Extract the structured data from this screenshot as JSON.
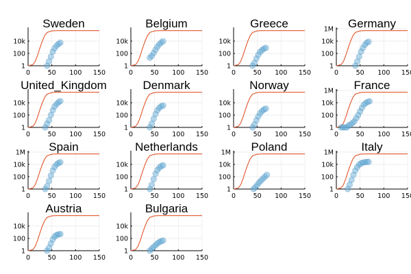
{
  "chart_data": [
    {
      "type": "scatter",
      "title": "Sweden",
      "xlim": [
        0,
        150
      ],
      "y_scale": "log",
      "ylim": [
        1,
        1000000
      ],
      "x_ticks": [
        "0",
        "50",
        "100",
        "150"
      ],
      "y_ticks": [
        "1",
        "100",
        "10k"
      ],
      "series": [
        {
          "type": "line",
          "x": [
            0,
            10,
            15,
            20,
            25,
            30,
            35,
            40,
            50,
            60,
            80,
            100,
            150
          ],
          "y": [
            1,
            1.5,
            5,
            50,
            800,
            10000,
            80000,
            250000,
            450000,
            500000,
            500000,
            500000,
            500000
          ]
        },
        {
          "type": "scatter",
          "x": [
            40,
            44,
            48,
            52,
            56,
            60,
            64,
            68
          ],
          "y": [
            1,
            5,
            30,
            200,
            700,
            1800,
            3500,
            5500
          ]
        }
      ]
    },
    {
      "type": "scatter",
      "title": "Belgium",
      "xlim": [
        0,
        150
      ],
      "y_scale": "log",
      "ylim": [
        1,
        1000000
      ],
      "x_ticks": [
        "0",
        "50",
        "100",
        "150"
      ],
      "y_ticks": [
        "1",
        "100",
        "10k"
      ],
      "series": [
        {
          "type": "line",
          "x": [
            0,
            10,
            15,
            20,
            25,
            30,
            35,
            40,
            50,
            60,
            80,
            100,
            150
          ],
          "y": [
            1,
            1.5,
            5,
            50,
            800,
            10000,
            80000,
            250000,
            450000,
            500000,
            500000,
            500000,
            500000
          ]
        },
        {
          "type": "scatter",
          "x": [
            40,
            44,
            48,
            52,
            56,
            60,
            64,
            68
          ],
          "y": [
            20,
            40,
            120,
            400,
            1200,
            3000,
            6000,
            9500
          ]
        }
      ]
    },
    {
      "type": "scatter",
      "title": "Greece",
      "xlim": [
        0,
        150
      ],
      "y_scale": "log",
      "ylim": [
        1,
        1000000
      ],
      "x_ticks": [
        "0",
        "50",
        "100",
        "150"
      ],
      "y_ticks": [
        "1",
        "100",
        "10k"
      ],
      "series": [
        {
          "type": "line",
          "x": [
            0,
            10,
            15,
            20,
            25,
            30,
            35,
            40,
            50,
            60,
            80,
            100,
            150
          ],
          "y": [
            1,
            1.5,
            5,
            50,
            800,
            10000,
            80000,
            250000,
            450000,
            500000,
            500000,
            500000,
            500000
          ]
        },
        {
          "type": "scatter",
          "x": [
            40,
            44,
            48,
            52,
            56,
            60,
            64,
            68
          ],
          "y": [
            1,
            3,
            15,
            60,
            180,
            350,
            600,
            800
          ]
        }
      ]
    },
    {
      "type": "scatter",
      "title": "Germany",
      "xlim": [
        0,
        150
      ],
      "y_scale": "log",
      "ylim": [
        1,
        1000000
      ],
      "x_ticks": [
        "0",
        "50",
        "100",
        "150"
      ],
      "y_ticks": [
        "1",
        "100",
        "10k",
        "1M"
      ],
      "series": [
        {
          "type": "line",
          "x": [
            0,
            10,
            15,
            20,
            25,
            30,
            35,
            40,
            50,
            60,
            80,
            100,
            150
          ],
          "y": [
            1,
            1.5,
            5,
            50,
            800,
            10000,
            80000,
            250000,
            450000,
            500000,
            500000,
            500000,
            500000
          ]
        },
        {
          "type": "scatter",
          "x": [
            40,
            44,
            48,
            52,
            56,
            60,
            64,
            68
          ],
          "y": [
            1,
            5,
            30,
            200,
            800,
            2500,
            5500,
            8000
          ]
        }
      ]
    },
    {
      "type": "scatter",
      "title": "United_Kingdom",
      "xlim": [
        0,
        150
      ],
      "y_scale": "log",
      "ylim": [
        1,
        1000000
      ],
      "x_ticks": [
        "0",
        "50",
        "100",
        "150"
      ],
      "y_ticks": [
        "1",
        "100",
        "10k"
      ],
      "series": [
        {
          "type": "line",
          "x": [
            0,
            10,
            15,
            20,
            25,
            30,
            35,
            40,
            50,
            60,
            80,
            100,
            150
          ],
          "y": [
            1,
            1.5,
            5,
            50,
            800,
            10000,
            80000,
            250000,
            450000,
            500000,
            500000,
            500000,
            500000
          ]
        },
        {
          "type": "scatter",
          "x": [
            36,
            40,
            44,
            48,
            52,
            56,
            60,
            64,
            68
          ],
          "y": [
            1,
            4,
            15,
            100,
            600,
            2500,
            6000,
            12000,
            18000
          ]
        }
      ]
    },
    {
      "type": "scatter",
      "title": "Denmark",
      "xlim": [
        0,
        150
      ],
      "y_scale": "log",
      "ylim": [
        1,
        1000000
      ],
      "x_ticks": [
        "0",
        "50",
        "100",
        "150"
      ],
      "y_ticks": [
        "1",
        "100",
        "10k"
      ],
      "series": [
        {
          "type": "line",
          "x": [
            0,
            10,
            15,
            20,
            25,
            30,
            35,
            40,
            50,
            60,
            80,
            100,
            150
          ],
          "y": [
            1,
            1.5,
            5,
            50,
            800,
            10000,
            80000,
            250000,
            450000,
            500000,
            500000,
            500000,
            500000
          ]
        },
        {
          "type": "scatter",
          "x": [
            40,
            44,
            48,
            52,
            56,
            60,
            64,
            68
          ],
          "y": [
            1,
            4,
            25,
            150,
            600,
            1500,
            2800,
            3500
          ]
        }
      ]
    },
    {
      "type": "scatter",
      "title": "Norway",
      "xlim": [
        0,
        150
      ],
      "y_scale": "log",
      "ylim": [
        1,
        1000000
      ],
      "x_ticks": [
        "0",
        "50",
        "100",
        "150"
      ],
      "y_ticks": [
        "1",
        "100",
        "10k"
      ],
      "series": [
        {
          "type": "line",
          "x": [
            0,
            10,
            15,
            20,
            25,
            30,
            35,
            40,
            50,
            60,
            80,
            100,
            150
          ],
          "y": [
            1,
            1.5,
            5,
            50,
            800,
            10000,
            80000,
            250000,
            450000,
            500000,
            500000,
            500000,
            500000
          ]
        },
        {
          "type": "scatter",
          "x": [
            40,
            44,
            48,
            52,
            56,
            60,
            64,
            68
          ],
          "y": [
            1,
            3,
            15,
            60,
            200,
            450,
            800,
            1100
          ]
        }
      ]
    },
    {
      "type": "scatter",
      "title": "France",
      "xlim": [
        0,
        150
      ],
      "y_scale": "log",
      "ylim": [
        1,
        1000000
      ],
      "x_ticks": [
        "0",
        "50",
        "100",
        "150"
      ],
      "y_ticks": [
        "1",
        "100",
        "10k",
        "1M"
      ],
      "series": [
        {
          "type": "line",
          "x": [
            0,
            10,
            15,
            20,
            25,
            30,
            35,
            40,
            50,
            60,
            80,
            100,
            150
          ],
          "y": [
            1,
            1.5,
            5,
            50,
            800,
            10000,
            80000,
            250000,
            450000,
            500000,
            500000,
            500000,
            500000
          ]
        },
        {
          "type": "scatter",
          "x": [
            10,
            14,
            18,
            22,
            26,
            30,
            34,
            38,
            42,
            46,
            50,
            54,
            58,
            62,
            66,
            70
          ],
          "y": [
            1,
            1,
            1,
            1,
            2,
            3,
            5,
            10,
            30,
            100,
            400,
            1500,
            5000,
            9000,
            14000,
            17000
          ]
        }
      ]
    },
    {
      "type": "scatter",
      "title": "Spain",
      "xlim": [
        0,
        150
      ],
      "y_scale": "log",
      "ylim": [
        1,
        1000000
      ],
      "x_ticks": [
        "0",
        "50",
        "100",
        "150"
      ],
      "y_ticks": [
        "1",
        "100",
        "10k",
        "1M"
      ],
      "series": [
        {
          "type": "line",
          "x": [
            0,
            10,
            15,
            20,
            25,
            30,
            35,
            40,
            50,
            60,
            80,
            100,
            150
          ],
          "y": [
            1,
            1.5,
            5,
            50,
            800,
            10000,
            80000,
            250000,
            450000,
            500000,
            500000,
            500000,
            500000
          ]
        },
        {
          "type": "scatter",
          "x": [
            36,
            40,
            44,
            48,
            52,
            56,
            60,
            64,
            68
          ],
          "y": [
            1,
            3,
            20,
            150,
            1000,
            4000,
            10000,
            17000,
            22000
          ]
        }
      ]
    },
    {
      "type": "scatter",
      "title": "Netherlands",
      "xlim": [
        0,
        150
      ],
      "y_scale": "log",
      "ylim": [
        1,
        1000000
      ],
      "x_ticks": [
        "0",
        "50",
        "100",
        "150"
      ],
      "y_ticks": [
        "1",
        "100",
        "10k"
      ],
      "series": [
        {
          "type": "line",
          "x": [
            0,
            10,
            15,
            20,
            25,
            30,
            35,
            40,
            50,
            60,
            80,
            100,
            150
          ],
          "y": [
            1,
            1.5,
            5,
            50,
            800,
            10000,
            80000,
            250000,
            450000,
            500000,
            500000,
            500000,
            500000
          ]
        },
        {
          "type": "scatter",
          "x": [
            40,
            44,
            48,
            52,
            56,
            60,
            64,
            68
          ],
          "y": [
            1,
            5,
            40,
            300,
            1200,
            3000,
            5500,
            7000
          ]
        }
      ]
    },
    {
      "type": "scatter",
      "title": "Poland",
      "xlim": [
        0,
        150
      ],
      "y_scale": "log",
      "ylim": [
        1,
        1000000
      ],
      "x_ticks": [
        "0",
        "50",
        "100",
        "150"
      ],
      "y_ticks": [
        "1",
        "100",
        "10k",
        "1M"
      ],
      "series": [
        {
          "type": "line",
          "x": [
            0,
            10,
            15,
            20,
            25,
            30,
            35,
            40,
            50,
            60,
            80,
            100,
            150
          ],
          "y": [
            1,
            1.5,
            5,
            50,
            800,
            10000,
            80000,
            250000,
            450000,
            500000,
            500000,
            500000,
            500000
          ]
        },
        {
          "type": "scatter",
          "x": [
            42,
            46,
            50,
            54,
            58,
            62,
            66,
            70
          ],
          "y": [
            1,
            2,
            5,
            12,
            25,
            50,
            100,
            200
          ]
        }
      ]
    },
    {
      "type": "scatter",
      "title": "Italy",
      "xlim": [
        0,
        150
      ],
      "y_scale": "log",
      "ylim": [
        1,
        1000000
      ],
      "x_ticks": [
        "0",
        "50",
        "100",
        "150"
      ],
      "y_ticks": [
        "1",
        "100",
        "10k",
        "1M"
      ],
      "series": [
        {
          "type": "line",
          "x": [
            0,
            10,
            15,
            20,
            25,
            30,
            35,
            40,
            50,
            60,
            80,
            100,
            150
          ],
          "y": [
            1,
            1.5,
            5,
            50,
            800,
            10000,
            80000,
            250000,
            450000,
            500000,
            500000,
            500000,
            500000
          ]
        },
        {
          "type": "scatter",
          "x": [
            24,
            28,
            32,
            36,
            40,
            44,
            48,
            52,
            56,
            60,
            64,
            68
          ],
          "y": [
            1,
            5,
            30,
            200,
            1000,
            3500,
            9000,
            15000,
            20000,
            23000,
            25000,
            26000
          ]
        }
      ]
    },
    {
      "type": "scatter",
      "title": "Austria",
      "xlim": [
        0,
        150
      ],
      "y_scale": "log",
      "ylim": [
        1,
        1000000
      ],
      "x_ticks": [
        "0",
        "50",
        "100",
        "150"
      ],
      "y_ticks": [
        "1",
        "100",
        "10k"
      ],
      "series": [
        {
          "type": "line",
          "x": [
            0,
            10,
            15,
            20,
            25,
            30,
            35,
            40,
            50,
            60,
            80,
            100,
            150
          ],
          "y": [
            1,
            1.5,
            5,
            50,
            800,
            10000,
            80000,
            250000,
            450000,
            500000,
            500000,
            500000,
            500000
          ]
        },
        {
          "type": "scatter",
          "x": [
            40,
            44,
            48,
            52,
            56,
            60,
            64,
            68
          ],
          "y": [
            1,
            3,
            15,
            70,
            200,
            350,
            450,
            500
          ]
        }
      ]
    },
    {
      "type": "scatter",
      "title": "Bulgaria",
      "xlim": [
        0,
        150
      ],
      "y_scale": "log",
      "ylim": [
        1,
        1000000
      ],
      "x_ticks": [
        "0",
        "50",
        "100",
        "150"
      ],
      "y_ticks": [
        "1",
        "100",
        "10k"
      ],
      "series": [
        {
          "type": "line",
          "x": [
            0,
            10,
            15,
            20,
            25,
            30,
            35,
            40,
            50,
            60,
            80,
            100,
            150
          ],
          "y": [
            1,
            1.5,
            5,
            50,
            800,
            10000,
            80000,
            250000,
            450000,
            500000,
            500000,
            500000,
            500000
          ]
        },
        {
          "type": "scatter",
          "x": [
            40,
            44,
            48,
            52,
            56,
            60,
            64,
            68
          ],
          "y": [
            1,
            2,
            4,
            8,
            15,
            25,
            35,
            45
          ]
        }
      ]
    }
  ]
}
